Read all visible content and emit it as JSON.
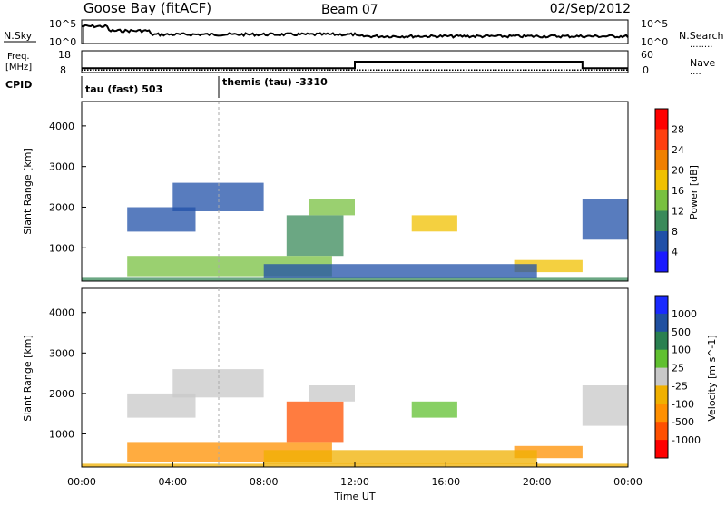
{
  "header": {
    "station": "Goose Bay (fitACF)",
    "beam": "Beam 07",
    "date": "02/Sep/2012"
  },
  "noise_panel": {
    "left_label": "N.Sky",
    "right_label": "N.Search",
    "right_dots": "........",
    "left_ticks": [
      "10^5",
      "10^0"
    ],
    "right_ticks": [
      "10^5",
      "10^0"
    ]
  },
  "freq_panel": {
    "left_label_line1": "Freq.",
    "left_label_line2": "[MHz]",
    "cpid_label": "CPID",
    "right_label": "Nave",
    "right_dots": "....",
    "left_ticks": [
      "18",
      "8"
    ],
    "right_ticks": [
      "60",
      "0"
    ],
    "freq_mhz": 10,
    "nave_steps": [
      {
        "from_hour": 0,
        "to_hour": 6,
        "nave": 12
      },
      {
        "from_hour": 6,
        "to_hour": 12,
        "nave": 12
      },
      {
        "from_hour": 12,
        "to_hour": 22,
        "nave": 30
      },
      {
        "from_hour": 22,
        "to_hour": 24,
        "nave": 12
      }
    ]
  },
  "cpid": [
    {
      "label": "tau (fast) 503",
      "from_hour": 0,
      "to_hour": 6
    },
    {
      "label": "themis (tau) -3310",
      "from_hour": 6,
      "to_hour": 24
    }
  ],
  "colors": {
    "power": [
      "#1a1aff",
      "#2050a8",
      "#3a8a5a",
      "#78c040",
      "#f0c000",
      "#f08000",
      "#ff4010",
      "#ff0000"
    ],
    "velocity": [
      "#ff0000",
      "#ff5000",
      "#ff9000",
      "#f0b000",
      "#c8c8c8",
      "#60c030",
      "#2a8050",
      "#2050a0",
      "#1a2aff"
    ]
  },
  "chart_data": [
    {
      "type": "heatmap",
      "name": "power",
      "ylabel": "Slant Range [km]",
      "xlabel": "Time UT",
      "xlim_hours": [
        0,
        24
      ],
      "ylim": [
        180,
        4600
      ],
      "yticks": [
        1000,
        2000,
        3000,
        4000
      ],
      "xtick_labels": [
        "00:00",
        "04:00",
        "08:00",
        "12:00",
        "16:00",
        "20:00",
        "00:00"
      ],
      "colorbar": {
        "label": "Power [dB]",
        "ticks": [
          "4",
          "8",
          "12",
          "16",
          "20",
          "24",
          "28"
        ],
        "range": [
          0,
          30
        ]
      },
      "regions": [
        {
          "t0": 0,
          "t1": 24,
          "r0": 190,
          "r1": 260,
          "level": 2
        },
        {
          "t0": 2,
          "t1": 5,
          "r0": 1400,
          "r1": 2000,
          "level": 1
        },
        {
          "t0": 4,
          "t1": 8,
          "r0": 1900,
          "r1": 2600,
          "level": 1
        },
        {
          "t0": 9,
          "t1": 11.5,
          "r0": 800,
          "r1": 1800,
          "level": 2
        },
        {
          "t0": 10,
          "t1": 12,
          "r0": 1800,
          "r1": 2200,
          "level": 3
        },
        {
          "t0": 14.5,
          "t1": 16.5,
          "r0": 1400,
          "r1": 1800,
          "level": 4
        },
        {
          "t0": 19,
          "t1": 22,
          "r0": 400,
          "r1": 700,
          "level": 4
        },
        {
          "t0": 22,
          "t1": 24,
          "r0": 1200,
          "r1": 2200,
          "level": 1
        },
        {
          "t0": 2,
          "t1": 11,
          "r0": 300,
          "r1": 800,
          "level": 3
        },
        {
          "t0": 8,
          "t1": 20,
          "r0": 250,
          "r1": 600,
          "level": 1
        }
      ]
    },
    {
      "type": "heatmap",
      "name": "velocity",
      "ylabel": "Slant Range [km]",
      "xlabel": "Time UT",
      "xlim_hours": [
        0,
        24
      ],
      "ylim": [
        180,
        4600
      ],
      "yticks": [
        1000,
        2000,
        3000,
        4000
      ],
      "xtick_labels": [
        "00:00",
        "04:00",
        "08:00",
        "12:00",
        "16:00",
        "20:00",
        "00:00"
      ],
      "colorbar": {
        "label": "Velocity [m s^-1]",
        "ticks": [
          "1000",
          "500",
          "100",
          "25",
          "-25",
          "-100",
          "-500",
          "-1000"
        ],
        "range": [
          -1000,
          1000
        ]
      },
      "regions": [
        {
          "t0": 0,
          "t1": 24,
          "r0": 190,
          "r1": 260,
          "level": 3
        },
        {
          "t0": 2,
          "t1": 5,
          "r0": 1400,
          "r1": 2000,
          "level": 4
        },
        {
          "t0": 4,
          "t1": 8,
          "r0": 1900,
          "r1": 2600,
          "level": 4
        },
        {
          "t0": 9,
          "t1": 11.5,
          "r0": 800,
          "r1": 1800,
          "level": 1
        },
        {
          "t0": 10,
          "t1": 12,
          "r0": 1800,
          "r1": 2200,
          "level": 4
        },
        {
          "t0": 14.5,
          "t1": 16.5,
          "r0": 1400,
          "r1": 1800,
          "level": 5
        },
        {
          "t0": 19,
          "t1": 22,
          "r0": 400,
          "r1": 700,
          "level": 2
        },
        {
          "t0": 22,
          "t1": 24,
          "r0": 1200,
          "r1": 2200,
          "level": 4
        },
        {
          "t0": 2,
          "t1": 11,
          "r0": 300,
          "r1": 800,
          "level": 2
        },
        {
          "t0": 8,
          "t1": 20,
          "r0": 250,
          "r1": 600,
          "level": 3
        }
      ]
    }
  ]
}
